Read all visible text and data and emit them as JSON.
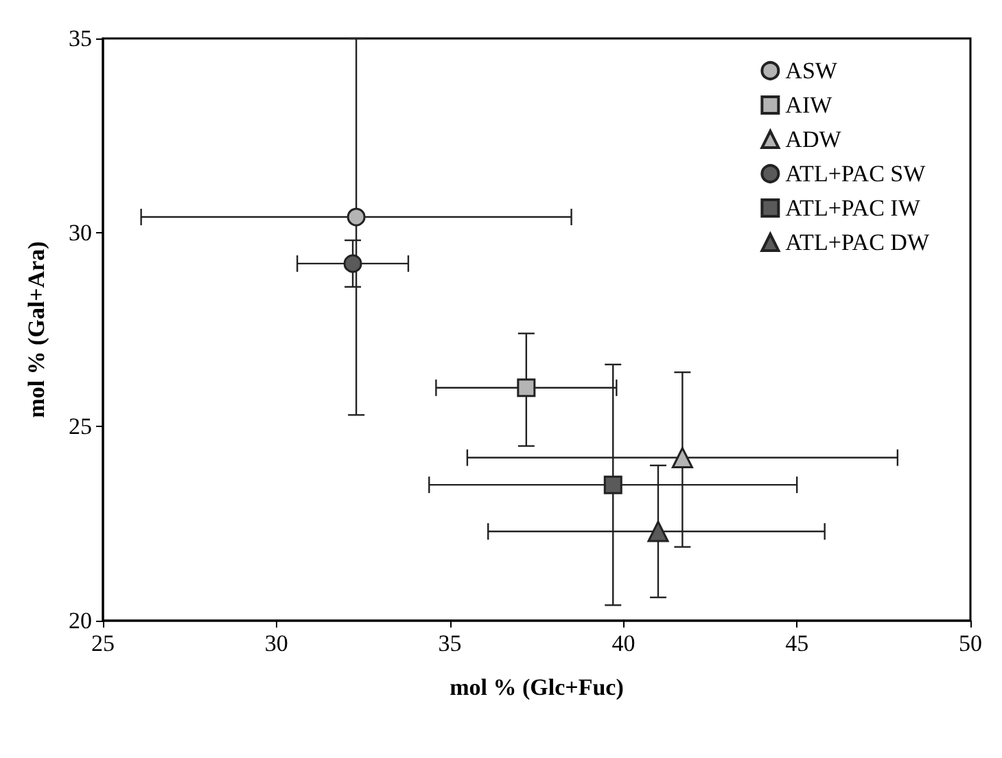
{
  "chart_data": {
    "type": "scatter",
    "xlabel": "mol % (Glc+Fuc)",
    "ylabel": "mol % (Gal+Ara)",
    "xlim": [
      25,
      50
    ],
    "xticks": [
      25,
      30,
      35,
      40,
      45,
      50
    ],
    "ylim": [
      20,
      35
    ],
    "yticks": [
      20,
      25,
      30,
      35
    ],
    "grid": false,
    "legend": "top right",
    "series": [
      {
        "name": "ASW",
        "color": "#b4b4b4",
        "marker": "circle",
        "x": [
          32.3
        ],
        "values": [
          30.4
        ],
        "errors": [
          [
            25.3,
            35
          ]
        ],
        "xerrors": [
          [
            26.1,
            38.5
          ]
        ]
      },
      {
        "name": "AIW",
        "color": "#b4b4b4",
        "marker": "square",
        "x": [
          37.2
        ],
        "values": [
          26.0
        ],
        "errors": [
          [
            24.5,
            27.4
          ]
        ],
        "xerrors": [
          [
            34.6,
            39.8
          ]
        ]
      },
      {
        "name": "ADW",
        "color": "#b4b4b4",
        "marker": "triangle",
        "x": [
          41.7
        ],
        "values": [
          24.2
        ],
        "errors": [
          [
            21.9,
            26.4
          ]
        ],
        "xerrors": [
          [
            35.5,
            47.9
          ]
        ]
      },
      {
        "name": "ATL+PAC SW",
        "color": "#5a5a5a",
        "marker": "circle",
        "x": [
          32.2
        ],
        "values": [
          29.2
        ],
        "errors": [
          [
            28.6,
            29.8
          ]
        ],
        "xerrors": [
          [
            30.6,
            33.8
          ]
        ]
      },
      {
        "name": "ATL+PAC IW",
        "color": "#5a5a5a",
        "marker": "square",
        "x": [
          39.7
        ],
        "values": [
          23.5
        ],
        "errors": [
          [
            20.4,
            26.6
          ]
        ],
        "xerrors": [
          [
            34.4,
            45.0
          ]
        ]
      },
      {
        "name": "ATL+PAC DW",
        "color": "#5a5a5a",
        "marker": "triangle",
        "x": [
          41.0
        ],
        "values": [
          22.3
        ],
        "errors": [
          [
            20.6,
            24.0
          ]
        ],
        "xerrors": [
          [
            36.1,
            45.8
          ]
        ]
      }
    ]
  }
}
